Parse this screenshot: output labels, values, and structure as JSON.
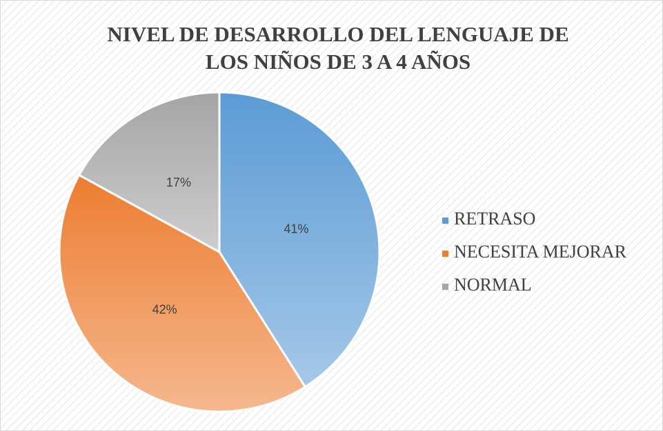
{
  "chart_data": {
    "type": "pie",
    "title": "NIVEL DE DESARROLLO DEL LENGUAJE DE LOS NIÑOS DE 3 A 4 AÑOS",
    "categories": [
      "RETRASO",
      "NECESITA MEJORAR",
      "NORMAL"
    ],
    "values": [
      41,
      42,
      17
    ],
    "value_labels": [
      "41%",
      "42%",
      "17%"
    ],
    "colors": [
      "#5b9bd5",
      "#ed7d31",
      "#a5a5a5"
    ],
    "legend": "right"
  }
}
